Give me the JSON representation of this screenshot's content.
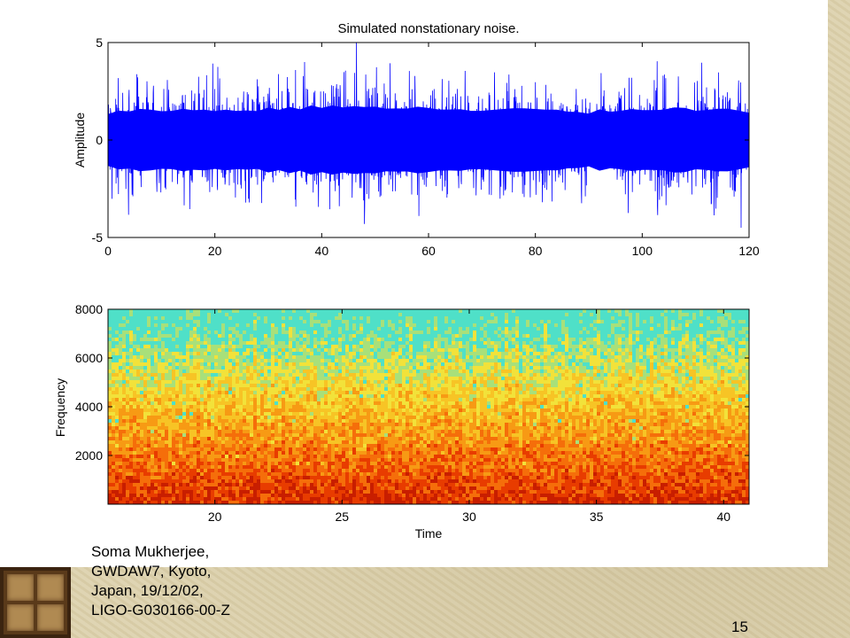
{
  "caption_lines": [
    "Soma Mukherjee,",
    "GWDAW7, Kyoto,",
    "Japan, 19/12/02,",
    "LIGO-G030166-00-Z"
  ],
  "slide_number": "15",
  "chart_data": [
    {
      "type": "line",
      "title": "Simulated nonstationary noise.",
      "xlabel": "",
      "ylabel": "Amplitude",
      "xlim": [
        0,
        120
      ],
      "ylim": [
        -5,
        5
      ],
      "xticks": [
        0,
        20,
        40,
        60,
        80,
        100,
        120
      ],
      "yticks": [
        -5,
        0,
        5
      ],
      "color": "#0000ff",
      "series": [
        {
          "x": [
            0,
            5,
            10,
            15,
            20,
            25,
            30,
            35,
            40,
            45,
            50,
            55,
            60,
            65,
            70,
            75,
            80,
            85,
            90,
            95,
            100,
            105,
            110,
            115,
            120
          ],
          "envelope": [
            2.6,
            2.8,
            2.7,
            2.9,
            2.8,
            2.7,
            2.9,
            3.0,
            3.1,
            3.2,
            3.0,
            2.9,
            3.0,
            2.8,
            2.7,
            2.9,
            2.8,
            2.7,
            2.6,
            2.8,
            2.9,
            3.0,
            2.8,
            3.1,
            2.7
          ],
          "peaks": [
            [
              5.0,
              46.5
            ],
            [
              -4.5,
              118.5
            ],
            [
              4.0,
              36.8
            ],
            [
              -3.9,
              58.2
            ]
          ]
        }
      ]
    },
    {
      "type": "heatmap",
      "title": "",
      "xlabel": "Time",
      "ylabel": "Frequency",
      "xlim": [
        15.8,
        41
      ],
      "ylim": [
        0,
        8000
      ],
      "xticks": [
        20,
        25,
        30,
        35,
        40
      ],
      "yticks": [
        2000,
        4000,
        6000,
        8000
      ],
      "colormap": [
        "#c81e00",
        "#e83c00",
        "#f56e0a",
        "#f79a14",
        "#f7c425",
        "#f2e23a",
        "#a8e07a",
        "#4fe0c8"
      ]
    }
  ]
}
